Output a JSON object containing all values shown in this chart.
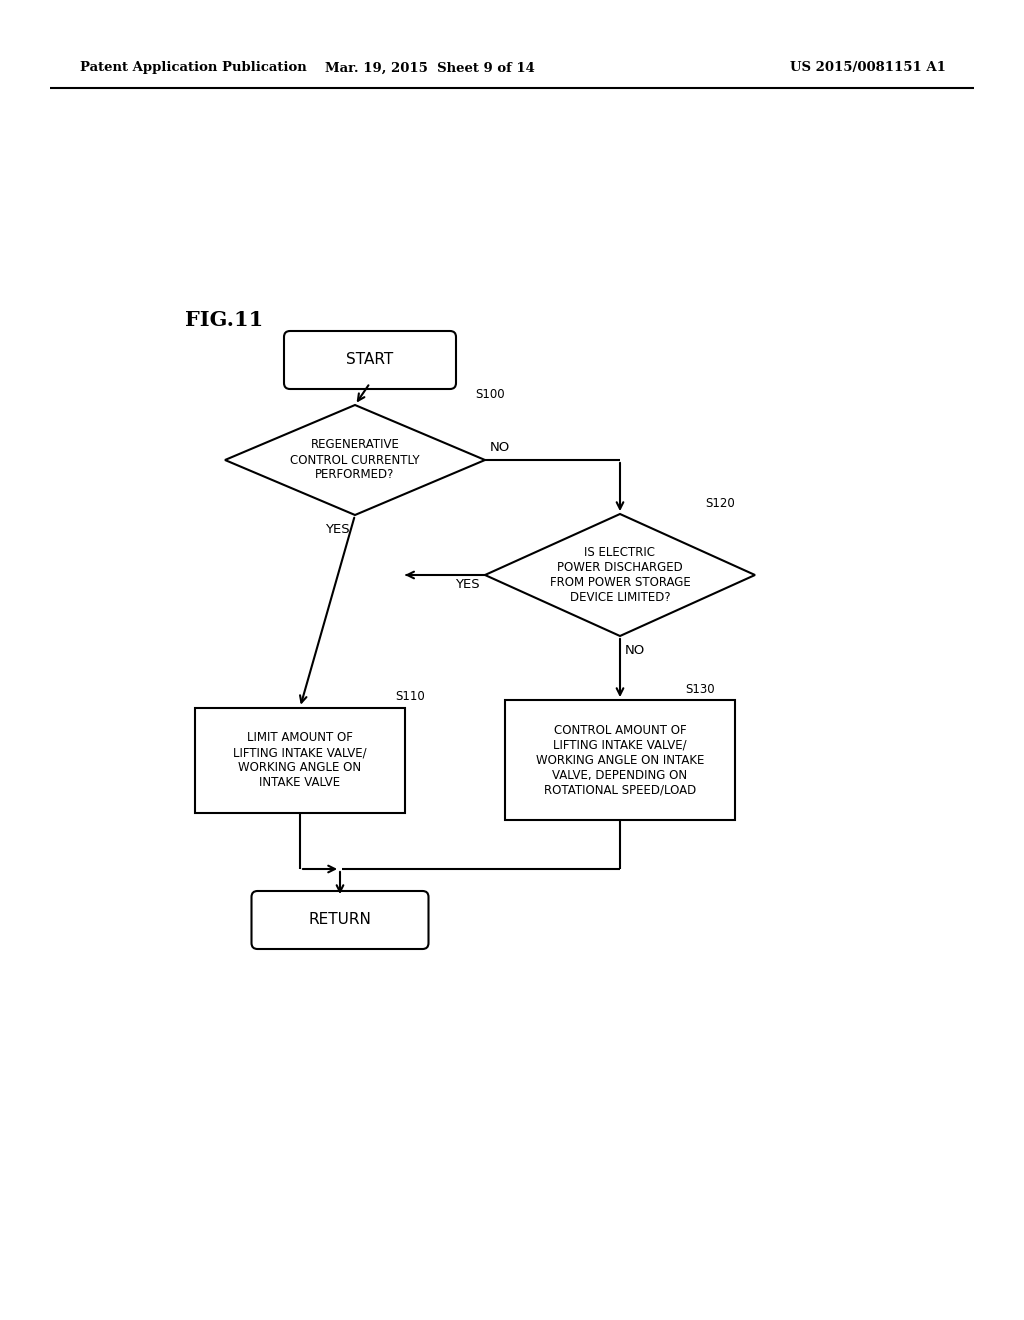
{
  "header_left": "Patent Application Publication",
  "header_mid": "Mar. 19, 2015  Sheet 9 of 14",
  "header_right": "US 2015/0081151 A1",
  "fig_label": "FIG.11",
  "bg_color": "#ffffff",
  "line_color": "#000000",
  "font_size_header": 9.5,
  "font_size_title": 15,
  "font_size_node": 8.5,
  "font_size_tag": 8.5,
  "font_size_yn": 9.0,
  "start_label": "START",
  "return_label": "RETURN",
  "s100_label": "REGENERATIVE\nCONTROL CURRENTLY\nPERFORMED?",
  "s100_tag": "S100",
  "s120_label": "IS ELECTRIC\nPOWER DISCHARGED\nFROM POWER STORAGE\nDEVICE LIMITED?",
  "s120_tag": "S120",
  "s110_label": "LIMIT AMOUNT OF\nLIFTING INTAKE VALVE/\nWORKING ANGLE ON\nINTAKE VALVE",
  "s110_tag": "S110",
  "s130_label": "CONTROL AMOUNT OF\nLIFTING INTAKE VALVE/\nWORKING ANGLE ON INTAKE\nVALVE, DEPENDING ON\nROTATIONAL SPEED/LOAD",
  "s130_tag": "S130"
}
